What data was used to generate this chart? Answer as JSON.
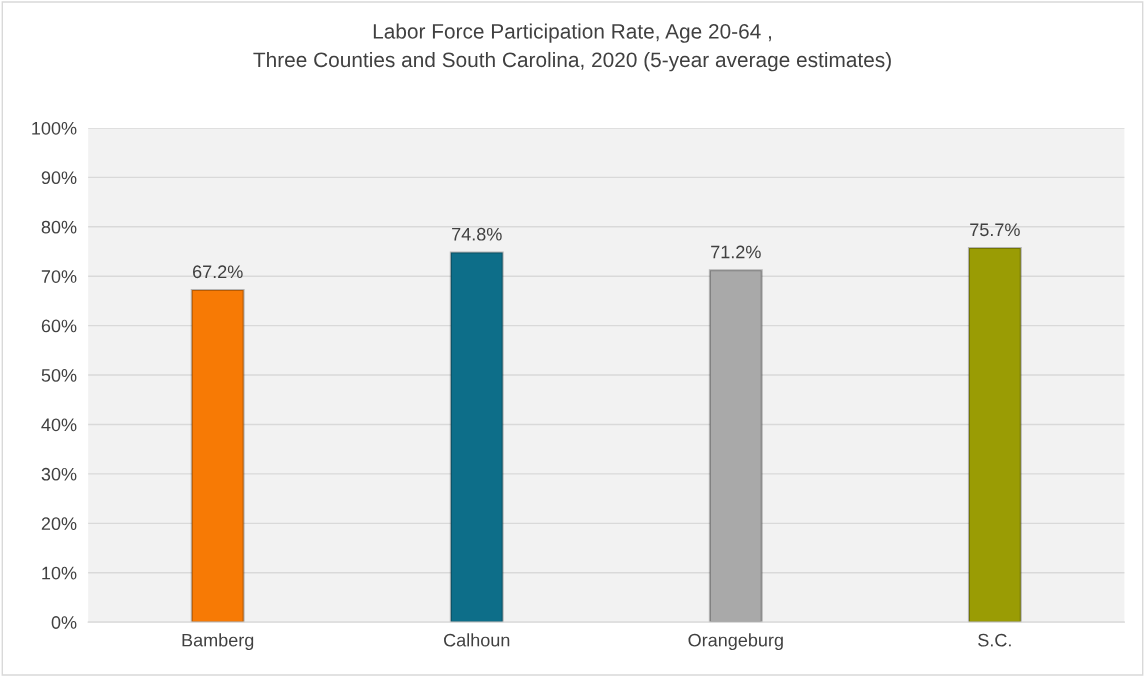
{
  "chart_data": {
    "type": "bar",
    "title": "Labor Force Participation Rate, Age 20-64 ,\nThree Counties and South Carolina, 2020 (5-year average estimates)",
    "categories": [
      "Bamberg",
      "Calhoun",
      "Orangeburg",
      "S.C."
    ],
    "values": [
      67.2,
      74.8,
      71.2,
      75.7
    ],
    "colors": [
      "#f77a05",
      "#0d6e89",
      "#a9a9a9",
      "#9a9c04"
    ],
    "value_labels": [
      "67.2%",
      "74.8%",
      "71.2%",
      "75.7%"
    ],
    "ylim": [
      0,
      100
    ],
    "yticks": [
      {
        "value": 0,
        "label": "0%"
      },
      {
        "value": 10,
        "label": "10%"
      },
      {
        "value": 20,
        "label": "20%"
      },
      {
        "value": 30,
        "label": "30%"
      },
      {
        "value": 40,
        "label": "40%"
      },
      {
        "value": 50,
        "label": "50%"
      },
      {
        "value": 60,
        "label": "60%"
      },
      {
        "value": 70,
        "label": "70%"
      },
      {
        "value": 80,
        "label": "80%"
      },
      {
        "value": 90,
        "label": "90%"
      },
      {
        "value": 100,
        "label": "100%"
      }
    ],
    "grid": "y"
  }
}
